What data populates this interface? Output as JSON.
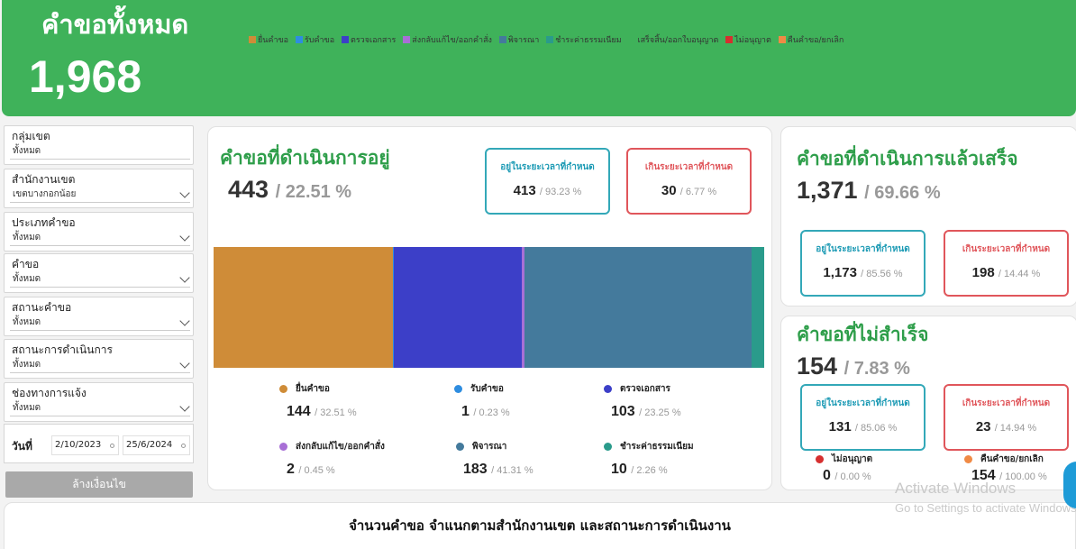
{
  "header": {
    "title": "คำขอทั้งหมด",
    "total": "1,968"
  },
  "filters": [
    {
      "label": "กลุ่มเขต",
      "value": "ทั้งหมด"
    },
    {
      "label": "สำนักงานเขต",
      "value": "เขตบางกอกน้อย"
    },
    {
      "label": "ประเภทคำขอ",
      "value": "ทั้งหมด"
    },
    {
      "label": "คำขอ",
      "value": "ทั้งหมด"
    },
    {
      "label": "สถานะคำขอ",
      "value": "ทั้งหมด"
    },
    {
      "label": "สถานะการดำเนินการ",
      "value": "ทั้งหมด"
    },
    {
      "label": "ช่องทางการแจ้ง",
      "value": "ทั้งหมด"
    }
  ],
  "date_filter": {
    "label": "วันที่",
    "start": "2/10/2023",
    "end": "25/6/2024"
  },
  "reset_label": "ล้างเงื่อนไข",
  "in_progress": {
    "title": "คำขอที่ดำเนินการอยู่",
    "count": "443",
    "percent": "/ 22.51 %",
    "on_time": {
      "label": "อยู่ในระยะเวลาที่กำหนด",
      "count": "413",
      "percent": "/ 93.23 %"
    },
    "overdue": {
      "label": "เกินระยะเวลาที่กำหนด",
      "count": "30",
      "percent": "/ 6.77 %"
    },
    "stages": [
      {
        "name": "ยื่นคำขอ",
        "count": "144",
        "percent": "/ 32.51 %",
        "value": 144,
        "color": "#cf8c38"
      },
      {
        "name": "รับคำขอ",
        "count": "1",
        "percent": "/ 0.23 %",
        "value": 1,
        "color": "#2e8de0"
      },
      {
        "name": "ตรวจเอกสาร",
        "count": "103",
        "percent": "/ 23.25 %",
        "value": 103,
        "color": "#3c3fc8"
      },
      {
        "name": "ส่งกลับแก้ไข/ออกคำสั่ง",
        "count": "2",
        "percent": "/ 0.45 %",
        "value": 2,
        "color": "#a86fd6"
      },
      {
        "name": "พิจารณา",
        "count": "183",
        "percent": "/ 41.31 %",
        "value": 183,
        "color": "#447a9c"
      },
      {
        "name": "ชำระค่าธรรมเนียม",
        "count": "10",
        "percent": "/ 2.26 %",
        "value": 10,
        "color": "#2a9b8b"
      }
    ]
  },
  "completed": {
    "title": "คำขอที่ดำเนินการแล้วเสร็จ",
    "count": "1,371",
    "percent": "/ 69.66 %",
    "on_time": {
      "label": "อยู่ในระยะเวลาที่กำหนด",
      "count": "1,173",
      "percent": "/ 85.56 %"
    },
    "overdue": {
      "label": "เกินระยะเวลาที่กำหนด",
      "count": "198",
      "percent": "/ 14.44 %"
    }
  },
  "failed": {
    "title": "คำขอที่ไม่สำเร็จ",
    "count": "154",
    "percent": "/ 7.83 %",
    "on_time": {
      "label": "อยู่ในระยะเวลาที่กำหนด",
      "count": "131",
      "percent": "/ 85.06 %"
    },
    "overdue": {
      "label": "เกินระยะเวลาที่กำหนด",
      "count": "23",
      "percent": "/ 14.94 %"
    },
    "breakdown": [
      {
        "name": "ไม่อนุญาต",
        "count": "0",
        "percent": "/ 0.00 %",
        "color": "#d62f2f"
      },
      {
        "name": "คืนคำขอ/ยกเลิก",
        "count": "154",
        "percent": "/ 100.00 %",
        "color": "#f08a45"
      }
    ]
  },
  "bottom_chart": {
    "title": "จำนวนคำขอ  จำแนกตามสำนักงานเขต และสถานะการดำเนินงาน",
    "legend": [
      {
        "name": "ยื่นคำขอ",
        "color": "#cf8c38"
      },
      {
        "name": "รับคำขอ",
        "color": "#2e8de0"
      },
      {
        "name": "ตรวจเอกสาร",
        "color": "#3c3fc8"
      },
      {
        "name": "ส่งกลับแก้ไข/ออกคำสั่ง",
        "color": "#a86fd6"
      },
      {
        "name": "พิจารณา",
        "color": "#447a9c"
      },
      {
        "name": "ชำระค่าธรรมเนียม",
        "color": "#2a9b8b"
      },
      {
        "name": "เสร็จสิ้น/ออกใบอนุญาต",
        "color": "#3fb25a"
      },
      {
        "name": "ไม่อนุญาต",
        "color": "#d62f2f"
      },
      {
        "name": "คืนคำขอ/ยกเลิก",
        "color": "#f08a45"
      }
    ]
  },
  "watermark": {
    "line1": "Activate Windows",
    "line2": "Go to Settings to activate Windows."
  }
}
